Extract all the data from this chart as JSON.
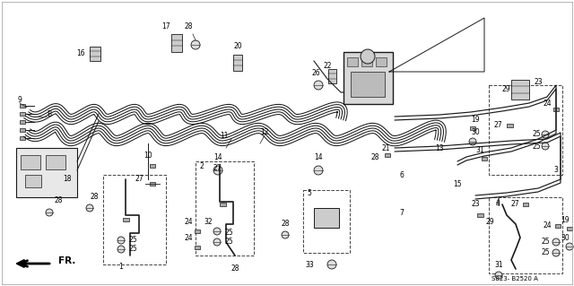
{
  "bg_color": "#ffffff",
  "diagram_source": "S823- B2520 A",
  "fr_label": "FR.",
  "fig_width": 6.4,
  "fig_height": 3.19,
  "dpi": 100,
  "line_color": "#1a1a1a",
  "text_color": "#000000",
  "fs": 5.5
}
